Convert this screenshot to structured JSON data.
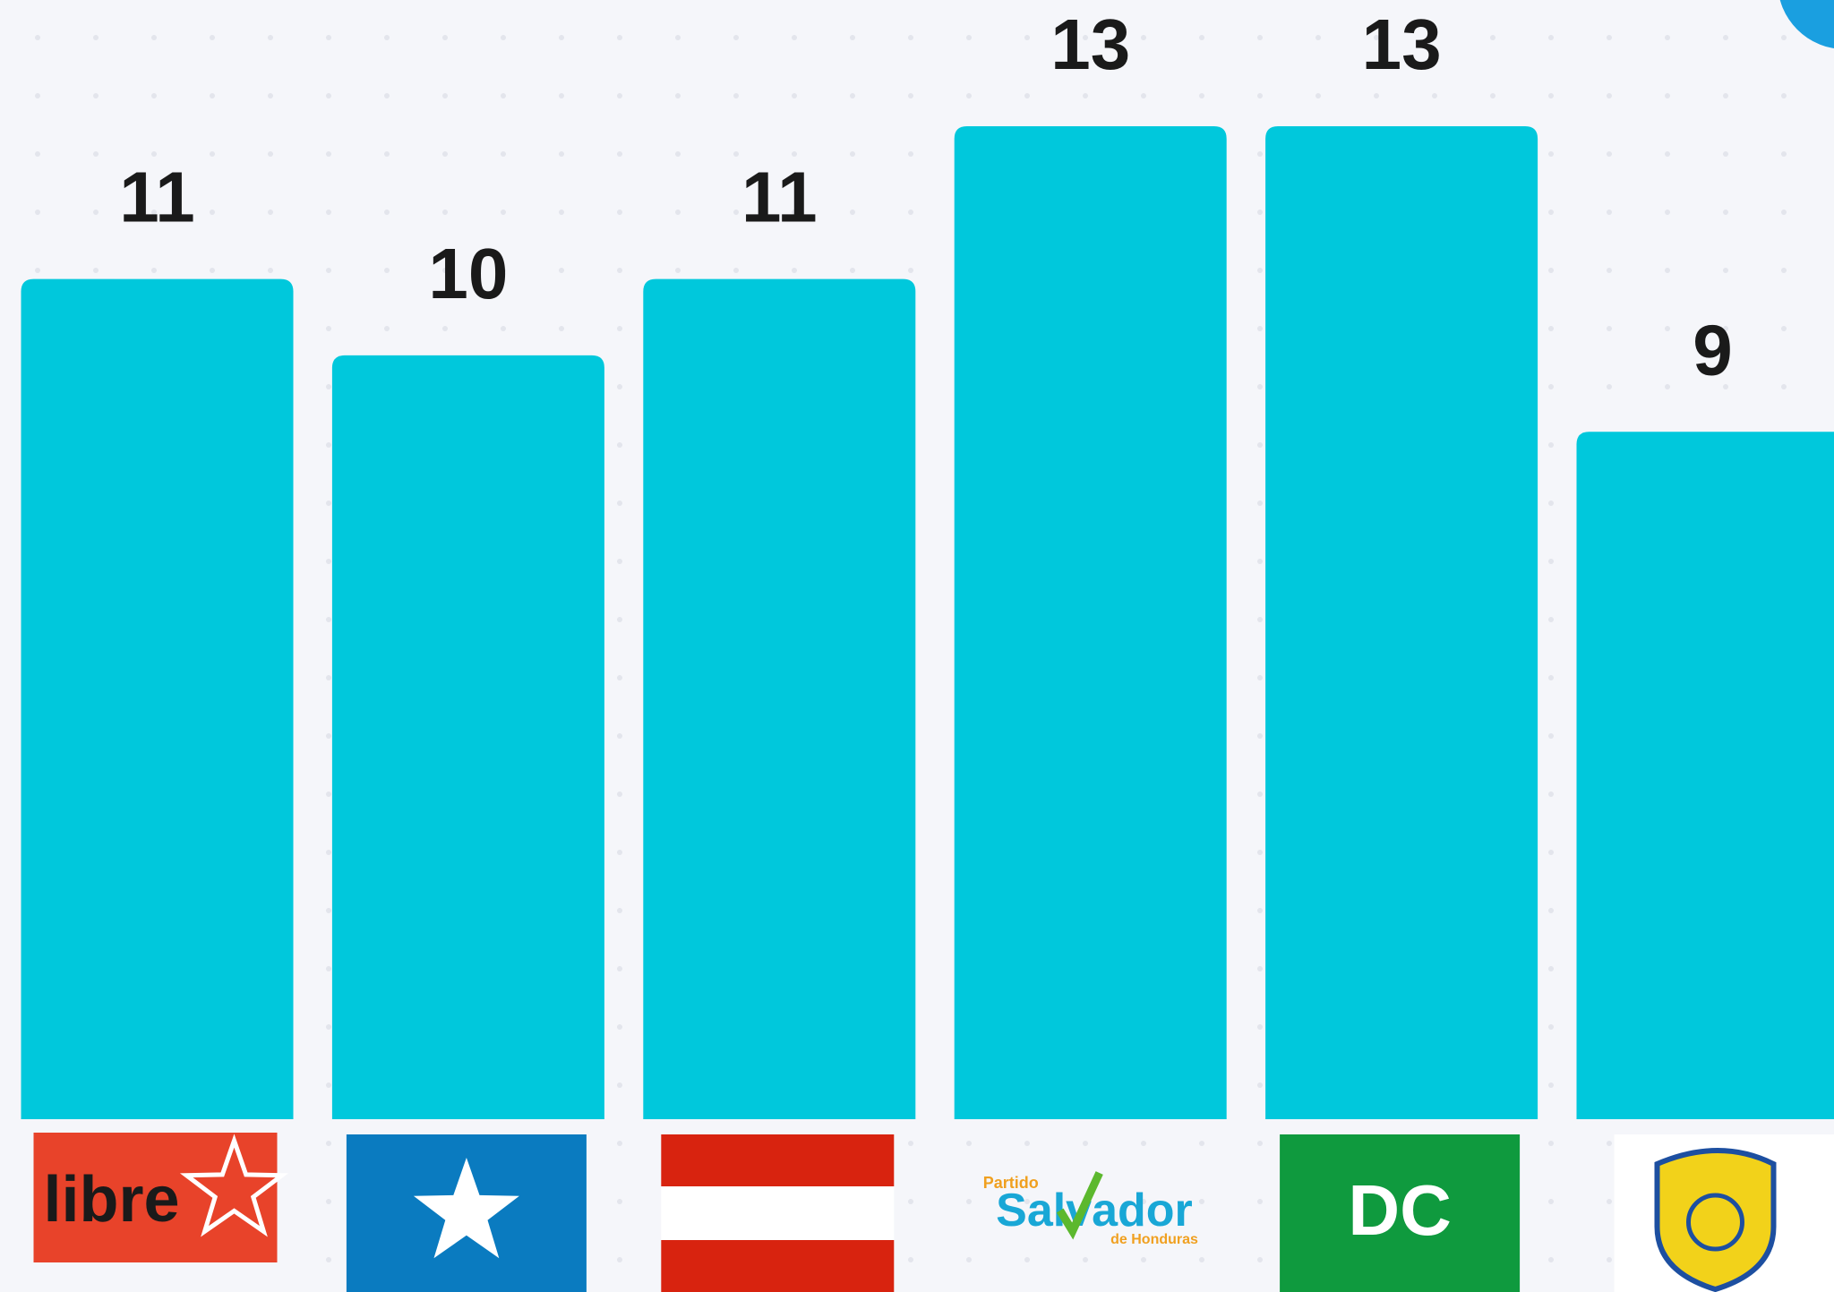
{
  "chart_data": {
    "type": "bar",
    "categories": [
      "libre",
      null,
      null,
      "Partido Salvador de Honduras",
      "DC",
      null
    ],
    "values": [
      11,
      10,
      11,
      13,
      13,
      9
    ],
    "color": "#00c8dc"
  }
}
